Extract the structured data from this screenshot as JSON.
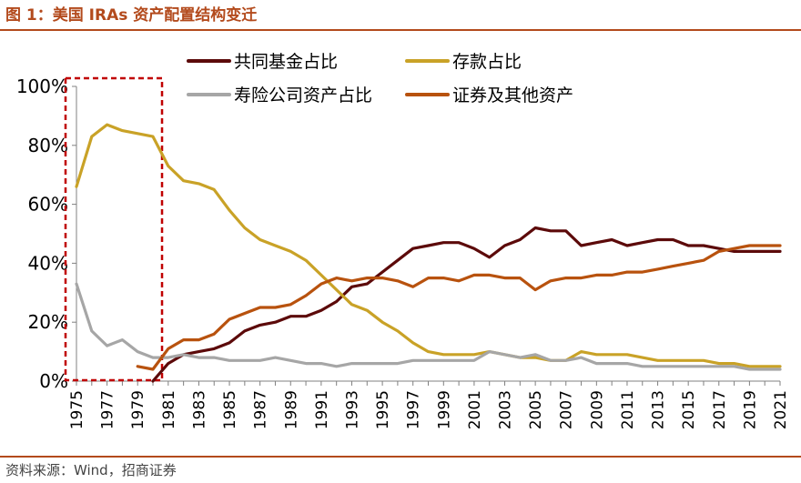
{
  "figure": {
    "title": "图 1：美国 IRAs 资产配置结构变迁",
    "source": "资料来源：Wind，招商证券"
  },
  "colors": {
    "accent": "#b34a1c",
    "highlight_box": "#c00000"
  },
  "chart_data": {
    "type": "line",
    "title": "美国 IRAs 资产配置结构变迁",
    "xlabel": "",
    "ylabel": "",
    "ylim": [
      0,
      100
    ],
    "y_ticks": [
      "0%",
      "20%",
      "40%",
      "60%",
      "80%",
      "100%"
    ],
    "x_tick_labels": [
      "1975",
      "1977",
      "1979",
      "1981",
      "1983",
      "1985",
      "1987",
      "1989",
      "1991",
      "1993",
      "1995",
      "1997",
      "1999",
      "2001",
      "2003",
      "2005",
      "2007",
      "2009",
      "2011",
      "2013",
      "2015",
      "2017",
      "2019",
      "2021"
    ],
    "x": [
      1975,
      1976,
      1977,
      1978,
      1979,
      1980,
      1981,
      1982,
      1983,
      1984,
      1985,
      1986,
      1987,
      1988,
      1989,
      1990,
      1991,
      1992,
      1993,
      1994,
      1995,
      1996,
      1997,
      1998,
      1999,
      2000,
      2001,
      2002,
      2003,
      2004,
      2005,
      2006,
      2007,
      2008,
      2009,
      2010,
      2011,
      2012,
      2013,
      2014,
      2015,
      2016,
      2017,
      2018,
      2019,
      2020,
      2021
    ],
    "highlight_range": [
      1975,
      1980
    ],
    "legend_position": "top",
    "series": [
      {
        "name": "共同基金占比",
        "color": "#5c0a0a",
        "values": [
          null,
          null,
          null,
          null,
          null,
          0,
          6,
          9,
          10,
          11,
          13,
          17,
          19,
          20,
          22,
          22,
          24,
          27,
          32,
          33,
          37,
          41,
          45,
          46,
          47,
          47,
          45,
          42,
          46,
          48,
          52,
          51,
          51,
          46,
          47,
          48,
          46,
          47,
          48,
          48,
          46,
          46,
          45,
          44,
          44,
          44,
          44
        ]
      },
      {
        "name": "存款占比",
        "color": "#c9a227",
        "values": [
          66,
          83,
          87,
          85,
          84,
          83,
          73,
          68,
          67,
          65,
          58,
          52,
          48,
          46,
          44,
          41,
          36,
          31,
          26,
          24,
          20,
          17,
          13,
          10,
          9,
          9,
          9,
          10,
          9,
          8,
          8,
          7,
          7,
          10,
          9,
          9,
          9,
          8,
          7,
          7,
          7,
          7,
          6,
          6,
          5,
          5,
          5
        ]
      },
      {
        "name": "寿险公司资产占比",
        "color": "#a6a6a6",
        "values": [
          33,
          17,
          12,
          14,
          10,
          8,
          8,
          9,
          8,
          8,
          7,
          7,
          7,
          8,
          7,
          6,
          6,
          5,
          6,
          6,
          6,
          6,
          7,
          7,
          7,
          7,
          7,
          10,
          9,
          8,
          9,
          7,
          7,
          8,
          6,
          6,
          6,
          5,
          5,
          5,
          5,
          5,
          5,
          5,
          4,
          4,
          4
        ]
      },
      {
        "name": "证券及其他资产",
        "color": "#b8520e",
        "values": [
          null,
          null,
          null,
          null,
          5,
          4,
          11,
          14,
          14,
          16,
          21,
          23,
          25,
          25,
          26,
          29,
          33,
          35,
          34,
          35,
          35,
          34,
          32,
          35,
          35,
          34,
          36,
          36,
          35,
          35,
          31,
          34,
          35,
          35,
          36,
          36,
          37,
          37,
          38,
          39,
          40,
          41,
          44,
          45,
          46,
          46,
          46
        ]
      }
    ]
  }
}
